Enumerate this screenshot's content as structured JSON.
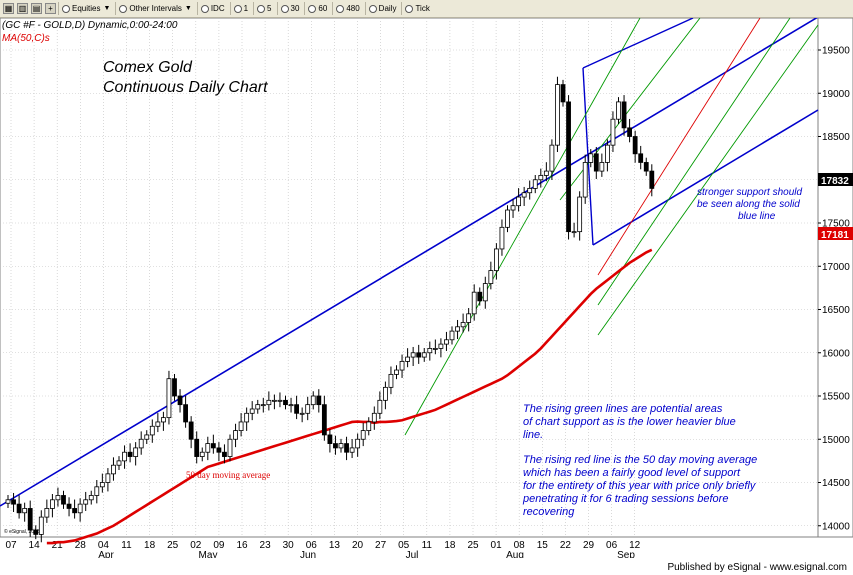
{
  "toolbar": {
    "symbols": "Equities",
    "intervals": "Other Intervals",
    "source": "IDC",
    "buttons": [
      "1",
      "5",
      "30",
      "60",
      "480",
      "Daily",
      "Tick"
    ]
  },
  "header": {
    "symbol": "(GC #F - GOLD,D) Dynamic,0:00-24:00",
    "indicator": "MA(50,C)s"
  },
  "annotations": {
    "title_line1": "Comex Gold",
    "title_line2": "Continuous Daily Chart",
    "ma_label": "50 day moving average",
    "support_note": [
      "stronger support should",
      "be seen along the solid",
      "blue line"
    ],
    "green_note": [
      "The rising green lines are potential areas",
      "of chart support as is the lower heavier blue",
      "line."
    ],
    "red_note": [
      "The rising red line is the 50 day moving average",
      "which has been a fairly good level of support",
      "for the entirety of this year with price only briefly",
      "penetrating it for 6 trading sessions before",
      "recovering"
    ],
    "copyright": "© eSignal, 2008"
  },
  "footer": "Published by eSignal - www.esignal.com",
  "colors": {
    "blue": "#0000cc",
    "green": "#009900",
    "red": "#dd0000",
    "candle": "#000000",
    "grid": "#c0c0c0"
  },
  "chart_data": {
    "type": "candlestick",
    "y_ticks": [
      14000,
      14500,
      15000,
      15500,
      16000,
      16500,
      17000,
      17500,
      18000,
      18500,
      19000,
      19500
    ],
    "ylim": [
      13870,
      19870
    ],
    "x_day_labels": [
      "07",
      "14",
      "21",
      "28",
      "04",
      "11",
      "18",
      "25",
      "02",
      "09",
      "16",
      "23",
      "30",
      "06",
      "13",
      "20",
      "27",
      "05",
      "11",
      "18",
      "25",
      "01",
      "08",
      "15",
      "22",
      "29",
      "06",
      "12"
    ],
    "x_month_labels": [
      "Apr",
      "May",
      "Jun",
      "Jul",
      "Aug",
      "Sep"
    ],
    "last_price_tag": "17832",
    "ma_value_tag": "17181",
    "closes": [
      14300,
      14250,
      14150,
      14200,
      13950,
      13900,
      14100,
      14200,
      14300,
      14350,
      14250,
      14200,
      14150,
      14250,
      14300,
      14350,
      14450,
      14500,
      14600,
      14700,
      14750,
      14850,
      14800,
      14900,
      15000,
      15050,
      15150,
      15200,
      15250,
      15700,
      15500,
      15400,
      15200,
      15000,
      14800,
      14850,
      14950,
      14900,
      14850,
      14800,
      15000,
      15100,
      15200,
      15300,
      15350,
      15400,
      15400,
      15450,
      15450,
      15450,
      15400,
      15400,
      15300,
      15300,
      15400,
      15500,
      15400,
      15050,
      14950,
      14900,
      14950,
      14850,
      14900,
      15000,
      15100,
      15200,
      15300,
      15450,
      15600,
      15750,
      15800,
      15900,
      15950,
      16000,
      15950,
      16000,
      16050,
      16050,
      16100,
      16150,
      16250,
      16300,
      16350,
      16450,
      16700,
      16600,
      16800,
      16950,
      17200,
      17450,
      17650,
      17700,
      17800,
      17850,
      17900,
      18000,
      18050,
      18100,
      18400,
      19100,
      18900,
      17400,
      17400,
      17800,
      18200,
      18300,
      18100,
      18200,
      18400,
      18700,
      18900,
      18600,
      18500,
      18300,
      18200,
      18100,
      17900
    ],
    "ma50": [
      13800,
      13800,
      13810,
      13810,
      13820,
      13830,
      13850,
      13870,
      13890,
      13910,
      13940,
      13970,
      14000,
      14040,
      14080,
      14120,
      14160,
      14200,
      14240,
      14280,
      14320,
      14360,
      14400,
      14440,
      14480,
      14520,
      14560,
      14600,
      14640,
      14680,
      14700,
      14720,
      14740,
      14760,
      14780,
      14800,
      14820,
      14840,
      14860,
      14880,
      14900,
      14920,
      14940,
      14960,
      14980,
      15000,
      15020,
      15040,
      15060,
      15080,
      15100,
      15120,
      15140,
      15160,
      15180,
      15200,
      15205,
      15200,
      15200,
      15190,
      15200,
      15200,
      15205,
      15210,
      15220,
      15240,
      15260,
      15280,
      15300,
      15320,
      15340,
      15370,
      15400,
      15430,
      15460,
      15490,
      15520,
      15550,
      15580,
      15610,
      15640,
      15670,
      15700,
      15740,
      15790,
      15840,
      15890,
      15940,
      15990,
      16050,
      16120,
      16190,
      16260,
      16330,
      16400,
      16470,
      16540,
      16610,
      16680,
      16740,
      16790,
      16840,
      16890,
      16940,
      16990,
      17040,
      17080,
      17120,
      17160,
      17190
    ]
  }
}
